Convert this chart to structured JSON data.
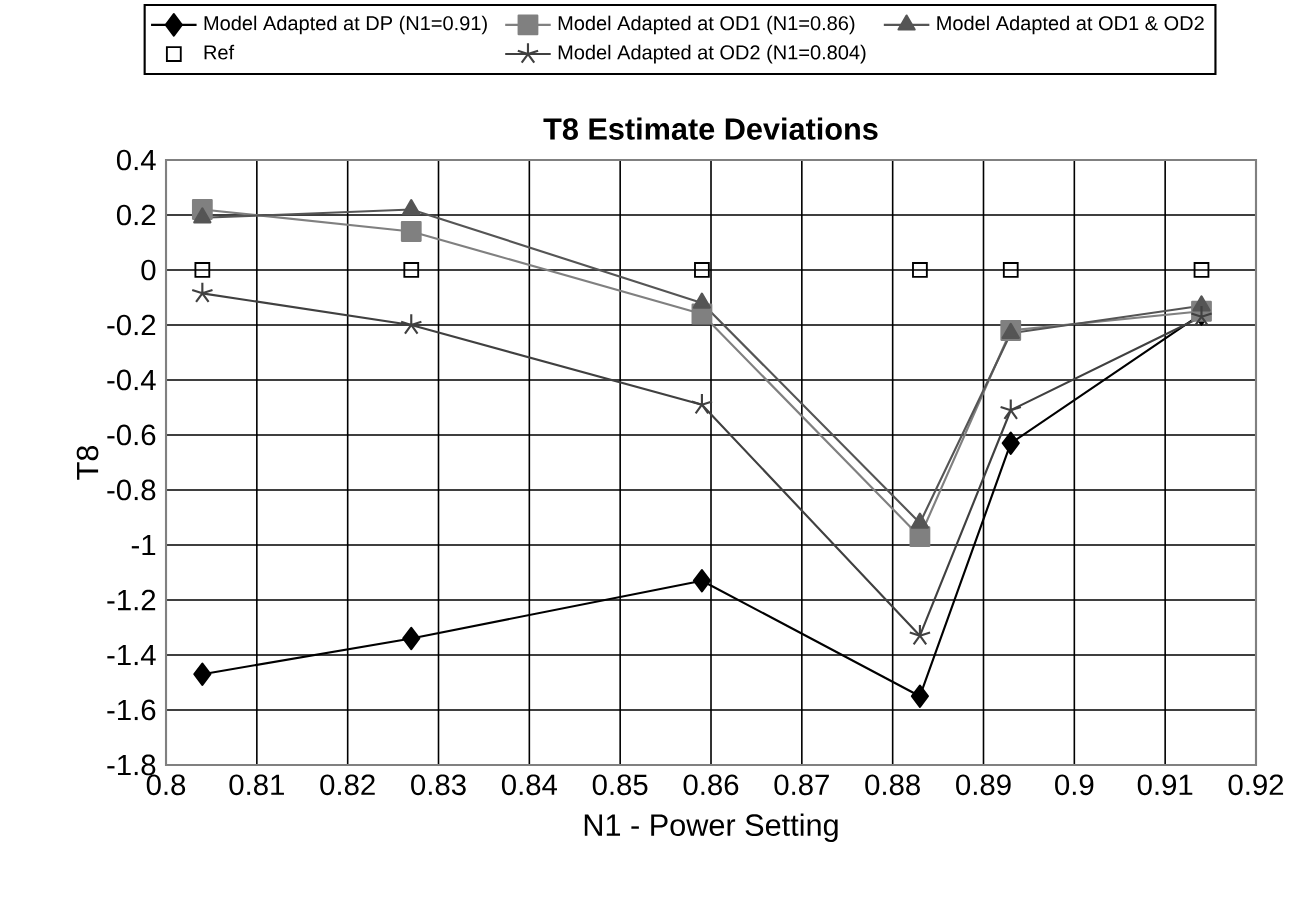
{
  "chart_data": {
    "type": "line",
    "title": "T8 Estimate Deviations",
    "xlabel": "N1 - Power Setting",
    "ylabel": "T8",
    "xlim": [
      0.8,
      0.92
    ],
    "xticks": [
      0.8,
      0.81,
      0.82,
      0.83,
      0.84,
      0.85,
      0.86,
      0.87,
      0.88,
      0.89,
      0.9,
      0.91,
      0.92
    ],
    "ylim": [
      -1.8,
      0.4
    ],
    "yticks": [
      -1.8,
      -1.6,
      -1.4,
      -1.2,
      -1,
      -0.8,
      -0.6,
      -0.4,
      -0.2,
      0,
      0.2,
      0.4
    ],
    "grid": true,
    "legend": "top",
    "line_style": "solid",
    "series": [
      {
        "name": "Model Adapted at DP (N1=0.91)",
        "color": "#000000",
        "marker": "diamond",
        "x": [
          0.804,
          0.827,
          0.859,
          0.883,
          0.893,
          0.914
        ],
        "values": [
          -1.47,
          -1.34,
          -1.13,
          -1.55,
          -0.63,
          -0.16
        ]
      },
      {
        "name": "Model Adapted at OD1 (N1=0.86)",
        "color": "#808080",
        "marker": "square",
        "x": [
          0.804,
          0.827,
          0.859,
          0.883,
          0.893,
          0.914
        ],
        "values": [
          0.22,
          0.14,
          -0.16,
          -0.97,
          -0.22,
          -0.15
        ]
      },
      {
        "name": "Model Adapted at OD1 & OD2",
        "color": "#555555",
        "marker": "triangle",
        "x": [
          0.804,
          0.827,
          0.859,
          0.883,
          0.893,
          0.914
        ],
        "values": [
          0.19,
          0.22,
          -0.12,
          -0.92,
          -0.23,
          -0.13
        ]
      },
      {
        "name": "Ref",
        "type": "scatter",
        "color": "#000000",
        "marker": "square",
        "x": [
          0.804,
          0.827,
          0.859,
          0.883,
          0.893,
          0.914
        ],
        "values": [
          0,
          0,
          0,
          0,
          0,
          0
        ]
      },
      {
        "name": "Model Adapted at OD2 (N1=0.804)",
        "color": "#404040",
        "marker": "cross",
        "x": [
          0.804,
          0.827,
          0.859,
          0.883,
          0.893,
          0.914
        ],
        "values": [
          -0.085,
          -0.2,
          -0.49,
          -1.33,
          -0.51,
          -0.17
        ]
      }
    ]
  }
}
